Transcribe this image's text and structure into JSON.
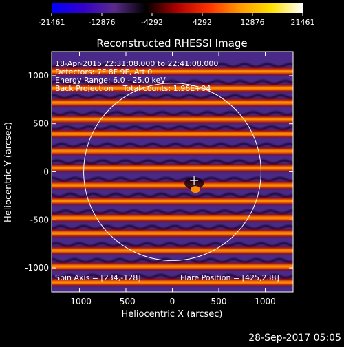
{
  "colorbar": {
    "tick_values": [
      -21461,
      -12876,
      -4292,
      4292,
      12876,
      21461
    ],
    "tick_labels": [
      "-21461",
      "-12876",
      "-4292",
      "4292",
      "12876",
      "21461"
    ],
    "colors": [
      "#0000ff",
      "#3300cc",
      "#5a2a8a",
      "#000000",
      "#b00000",
      "#ff3000",
      "#ff9900",
      "#ffe000",
      "#ffffff"
    ]
  },
  "chart_data": {
    "type": "heatmap",
    "title": "Reconstructed RHESSI Image",
    "xlabel": "Heliocentric X (arcsec)",
    "ylabel": "Heliocentric Y (arcsec)",
    "xlim": [
      -1300,
      1300
    ],
    "ylim": [
      -1250,
      1250
    ],
    "x_ticks": [
      -1000,
      -500,
      0,
      500,
      1000
    ],
    "y_ticks": [
      -1000,
      -500,
      0,
      500,
      1000
    ],
    "annotations": [
      "18-Apr-2015 22:31:08.000 to 22:41:08.000",
      "Detectors: 7F 8F 9F, Att 0",
      "Energy Range: 6.0 - 25.0 keV",
      "Back Projection    Total counts: 1.96E+04"
    ],
    "spin_axis": "Spin Axis = [234,-128]",
    "flare_position": "Flare Position = [425,238]",
    "solar_disk": {
      "center": [
        0,
        0
      ],
      "radius_arcsec": 955
    },
    "marker": [
      234,
      -90
    ],
    "bright_band_centers_y": [
      1045,
      870,
      720,
      545,
      395,
      215,
      40,
      -140,
      -305,
      -480,
      -640,
      -820,
      -985,
      -1150
    ]
  },
  "footer": {
    "timestamp": "28-Sep-2017 05:05"
  }
}
